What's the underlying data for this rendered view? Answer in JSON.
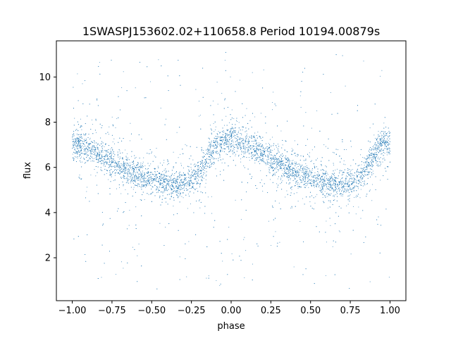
{
  "chart_data": {
    "type": "scatter",
    "title": "1SWASPJ153602.02+110658.8 Period 10194.00879s",
    "xlabel": "phase",
    "ylabel": "flux",
    "xlim": [
      -1.1,
      1.1
    ],
    "ylim": [
      0.1,
      11.6
    ],
    "xticks": [
      "−1.00",
      "−0.75",
      "−0.50",
      "−0.25",
      "0.00",
      "0.25",
      "0.50",
      "0.75",
      "1.00"
    ],
    "xtick_values": [
      -1.0,
      -0.75,
      -0.5,
      -0.25,
      0.0,
      0.25,
      0.5,
      0.75,
      1.0
    ],
    "yticks": [
      "2",
      "4",
      "6",
      "8",
      "10"
    ],
    "ytick_values": [
      2,
      4,
      6,
      8,
      10
    ],
    "grid": false,
    "point_color": "#1f77b4",
    "series": [
      {
        "phase": [
          -1.0,
          -0.95,
          -0.9,
          -0.85,
          -0.8,
          -0.75,
          -0.7,
          -0.65,
          -0.6,
          -0.55,
          -0.5,
          -0.45,
          -0.4,
          -0.35,
          -0.3,
          -0.25,
          -0.2,
          -0.15,
          -0.1,
          -0.05,
          0.0,
          0.05,
          0.1,
          0.15,
          0.2,
          0.25,
          0.3,
          0.35,
          0.4,
          0.45,
          0.5,
          0.55,
          0.6,
          0.65,
          0.7,
          0.75,
          0.8,
          0.85,
          0.9,
          0.95,
          1.0
        ],
        "flux_trend": [
          7.1,
          7.0,
          6.85,
          6.65,
          6.45,
          6.25,
          6.05,
          5.85,
          5.7,
          5.55,
          5.45,
          5.35,
          5.3,
          5.25,
          5.3,
          5.45,
          5.8,
          6.4,
          6.9,
          7.1,
          7.2,
          7.15,
          7.0,
          6.8,
          6.6,
          6.4,
          6.2,
          6.0,
          5.8,
          5.65,
          5.5,
          5.4,
          5.3,
          5.25,
          5.25,
          5.3,
          5.5,
          5.95,
          6.6,
          7.05,
          7.1
        ],
        "scatter_sigma": 0.55,
        "flux_outlier_range": [
          0.6,
          11.1
        ]
      }
    ]
  }
}
